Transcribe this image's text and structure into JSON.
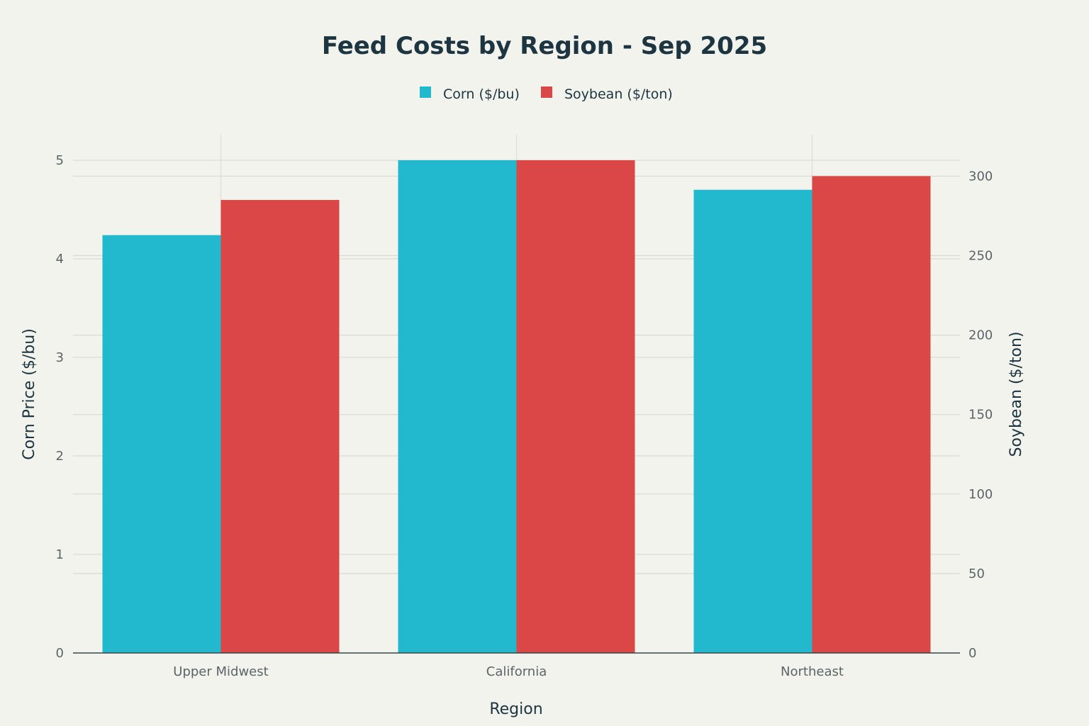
{
  "colors": {
    "corn": "#22b8ce",
    "soybean": "#db4747",
    "background": "#f3f3ee"
  },
  "chart_data": {
    "type": "bar",
    "title": "Feed Costs by Region - Sep 2025",
    "xlabel": "Region",
    "ylabel": "Corn Price ($/bu)",
    "y2label": "Soybean ($/ton)",
    "categories": [
      "Upper Midwest",
      "California",
      "Northeast"
    ],
    "series": [
      {
        "name": "Corn ($/bu)",
        "axis": "left",
        "color": "#22b8ce",
        "values": [
          4.24,
          5.0,
          4.7
        ]
      },
      {
        "name": "Soybean ($/ton)",
        "axis": "right",
        "color": "#db4747",
        "values": [
          285,
          310,
          300
        ]
      }
    ],
    "ylim": [
      0,
      5
    ],
    "yticks": [
      "0",
      "1",
      "2",
      "3",
      "4",
      "5"
    ],
    "y2lim": [
      0,
      310
    ],
    "y2ticks": [
      "0",
      "50",
      "100",
      "150",
      "200",
      "250",
      "300"
    ],
    "legend": "top-center",
    "grid": true
  }
}
